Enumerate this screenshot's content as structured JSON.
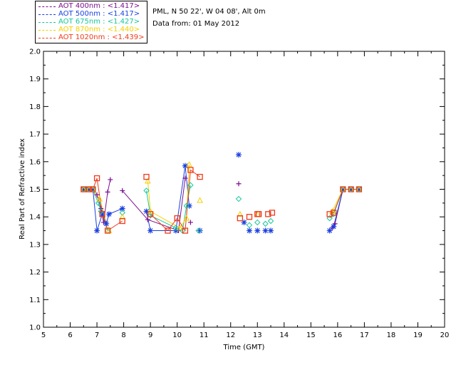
{
  "site": {
    "location": "PML, N 50 22', W 04 08', Alt 0m",
    "date_line": "Data from: 01 May 2012"
  },
  "chart_data": {
    "type": "scatter",
    "title": "",
    "xlabel": "Time (GMT)",
    "ylabel": "Real Part of Refractive index",
    "xlim": [
      5,
      20
    ],
    "ylim": [
      1.0,
      2.0
    ],
    "xticks": [
      5,
      6,
      7,
      8,
      9,
      10,
      11,
      12,
      13,
      14,
      15,
      16,
      17,
      18,
      19,
      20
    ],
    "yticks": [
      1.0,
      1.1,
      1.2,
      1.3,
      1.4,
      1.5,
      1.6,
      1.7,
      1.8,
      1.9,
      2.0
    ],
    "grid": false,
    "legend_position": "top-left",
    "series": [
      {
        "name": "AOT  400nm : <1.417>",
        "color": "#7b0f8f",
        "marker": "plus",
        "points": [
          [
            6.5,
            1.5
          ],
          [
            6.7,
            1.5
          ],
          [
            6.85,
            1.5
          ],
          [
            7.0,
            1.48
          ],
          [
            7.15,
            1.43
          ],
          [
            7.25,
            1.38
          ],
          [
            7.4,
            1.49
          ],
          [
            7.5,
            1.535
          ],
          [
            7.95,
            1.495
          ],
          [
            8.9,
            1.39
          ],
          [
            10.05,
            1.35
          ],
          [
            10.3,
            1.54
          ],
          [
            10.5,
            1.38
          ],
          [
            12.3,
            1.52
          ],
          [
            15.8,
            1.36
          ],
          [
            15.9,
            1.375
          ],
          [
            16.2,
            1.5
          ],
          [
            16.5,
            1.5
          ],
          [
            16.8,
            1.5
          ]
        ]
      },
      {
        "name": "AOT  500nm : <1.417>",
        "color": "#1a3fe0",
        "marker": "asterisk",
        "points": [
          [
            6.5,
            1.5
          ],
          [
            6.7,
            1.5
          ],
          [
            6.85,
            1.5
          ],
          [
            7.0,
            1.35
          ],
          [
            7.2,
            1.41
          ],
          [
            7.35,
            1.375
          ],
          [
            7.45,
            1.41
          ],
          [
            7.95,
            1.43
          ],
          [
            8.85,
            1.42
          ],
          [
            9.0,
            1.35
          ],
          [
            9.95,
            1.35
          ],
          [
            10.3,
            1.585
          ],
          [
            10.45,
            1.44
          ],
          [
            10.85,
            1.35
          ],
          [
            12.3,
            1.625
          ],
          [
            12.5,
            1.38
          ],
          [
            12.7,
            1.35
          ],
          [
            13.0,
            1.35
          ],
          [
            13.3,
            1.35
          ],
          [
            13.5,
            1.35
          ],
          [
            15.7,
            1.35
          ],
          [
            15.85,
            1.365
          ],
          [
            16.2,
            1.5
          ],
          [
            16.5,
            1.5
          ],
          [
            16.8,
            1.5
          ]
        ]
      },
      {
        "name": "AOT  675nm : <1.427>",
        "color": "#16c79a",
        "marker": "diamond",
        "points": [
          [
            6.5,
            1.5
          ],
          [
            6.7,
            1.5
          ],
          [
            6.85,
            1.5
          ],
          [
            7.05,
            1.45
          ],
          [
            7.15,
            1.42
          ],
          [
            7.4,
            1.35
          ],
          [
            7.95,
            1.415
          ],
          [
            8.85,
            1.495
          ],
          [
            9.0,
            1.405
          ],
          [
            9.95,
            1.36
          ],
          [
            10.2,
            1.35
          ],
          [
            10.35,
            1.44
          ],
          [
            10.5,
            1.515
          ],
          [
            10.8,
            1.35
          ],
          [
            12.3,
            1.465
          ],
          [
            12.7,
            1.37
          ],
          [
            13.0,
            1.38
          ],
          [
            13.3,
            1.375
          ],
          [
            13.5,
            1.385
          ],
          [
            15.7,
            1.395
          ],
          [
            15.85,
            1.41
          ],
          [
            16.2,
            1.5
          ],
          [
            16.5,
            1.5
          ],
          [
            16.8,
            1.5
          ]
        ]
      },
      {
        "name": "AOT  870nm : <1.440>",
        "color": "#f4d000",
        "marker": "triangle",
        "points": [
          [
            6.5,
            1.5
          ],
          [
            6.7,
            1.5
          ],
          [
            6.85,
            1.5
          ],
          [
            7.1,
            1.465
          ],
          [
            7.45,
            1.35
          ],
          [
            7.95,
            1.4
          ],
          [
            8.9,
            1.53
          ],
          [
            9.0,
            1.42
          ],
          [
            10.1,
            1.36
          ],
          [
            10.35,
            1.395
          ],
          [
            10.45,
            1.59
          ],
          [
            10.85,
            1.46
          ],
          [
            12.35,
            1.41
          ],
          [
            13.0,
            1.41
          ],
          [
            15.8,
            1.42
          ],
          [
            16.2,
            1.5
          ],
          [
            16.5,
            1.5
          ],
          [
            16.8,
            1.5
          ]
        ]
      },
      {
        "name": "AOT 1020nm : <1.439>",
        "color": "#ee3a1a",
        "marker": "square",
        "points": [
          [
            6.5,
            1.5
          ],
          [
            6.7,
            1.5
          ],
          [
            6.85,
            1.5
          ],
          [
            7.0,
            1.54
          ],
          [
            7.2,
            1.41
          ],
          [
            7.4,
            1.35
          ],
          [
            7.95,
            1.385
          ],
          [
            8.85,
            1.545
          ],
          [
            9.0,
            1.41
          ],
          [
            9.65,
            1.35
          ],
          [
            10.0,
            1.395
          ],
          [
            10.3,
            1.35
          ],
          [
            10.5,
            1.57
          ],
          [
            10.85,
            1.545
          ],
          [
            12.35,
            1.395
          ],
          [
            12.7,
            1.4
          ],
          [
            13.0,
            1.41
          ],
          [
            13.05,
            1.41
          ],
          [
            13.4,
            1.41
          ],
          [
            13.55,
            1.415
          ],
          [
            15.7,
            1.41
          ],
          [
            15.85,
            1.415
          ],
          [
            16.2,
            1.5
          ],
          [
            16.5,
            1.5
          ],
          [
            16.8,
            1.5
          ]
        ]
      }
    ],
    "connected_segments": [
      {
        "series": 0,
        "from": 0,
        "to": 7
      },
      {
        "series": 0,
        "from": 8,
        "to": 11
      },
      {
        "series": 0,
        "from": 14,
        "to": 18
      },
      {
        "series": 1,
        "from": 0,
        "to": 7
      },
      {
        "series": 1,
        "from": 8,
        "to": 12
      },
      {
        "series": 1,
        "from": 20,
        "to": 24
      },
      {
        "series": 2,
        "from": 0,
        "to": 5
      },
      {
        "series": 2,
        "from": 7,
        "to": 12
      },
      {
        "series": 2,
        "from": 19,
        "to": 23
      },
      {
        "series": 3,
        "from": 0,
        "to": 4
      },
      {
        "series": 3,
        "from": 6,
        "to": 10
      },
      {
        "series": 3,
        "from": 14,
        "to": 17
      },
      {
        "series": 4,
        "from": 0,
        "to": 6
      },
      {
        "series": 4,
        "from": 8,
        "to": 13
      },
      {
        "series": 4,
        "from": 20,
        "to": 24
      }
    ]
  }
}
